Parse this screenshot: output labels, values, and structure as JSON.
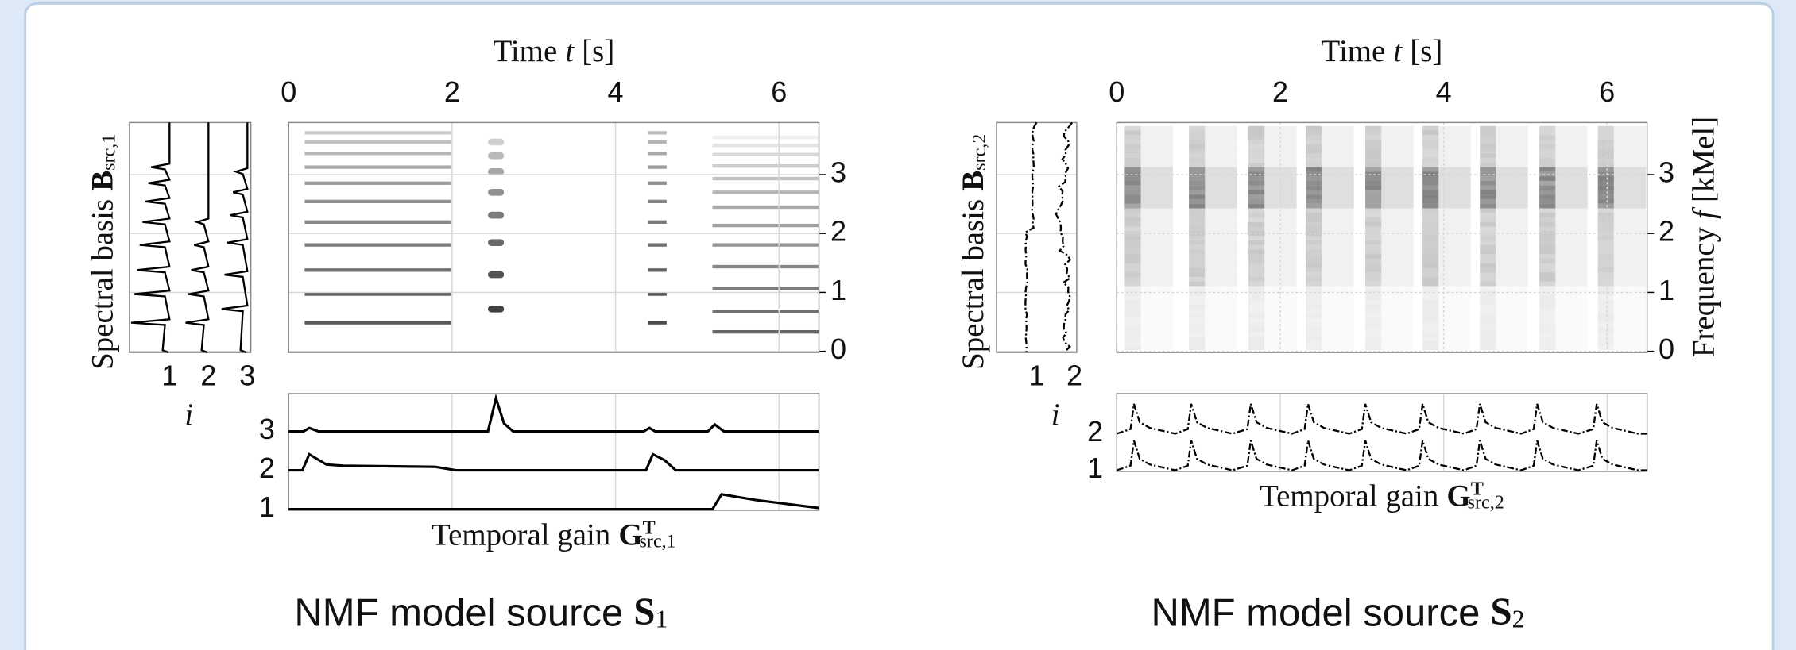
{
  "panels": [
    {
      "x_label": "Time",
      "x_symbol": "t",
      "x_unit": "[s]",
      "x_ticks": [
        "0",
        "2",
        "4",
        "6"
      ],
      "y_ticks": [
        "0",
        "1",
        "2",
        "3"
      ],
      "basis_label": "Spectral basis",
      "basis_symbol": "B",
      "basis_subscript": "src,1",
      "basis_ticks": [
        "1",
        "2",
        "3"
      ],
      "basis_axis_label": "i",
      "gain_ticks": [
        "1",
        "2",
        "3"
      ],
      "gain_label": "Temporal gain",
      "gain_symbol": "G",
      "gain_superscript": "T",
      "gain_subscript": "src,1",
      "caption": "NMF model source",
      "caption_symbol": "S",
      "caption_subscript": "1"
    },
    {
      "x_label": "Time",
      "x_symbol": "t",
      "x_unit": "[s]",
      "x_ticks": [
        "0",
        "2",
        "4",
        "6"
      ],
      "y_ticks": [
        "0",
        "1",
        "2",
        "3"
      ],
      "y_label": "Frequency",
      "y_symbol": "f",
      "y_unit": "[kMel]",
      "basis_label": "Spectral basis",
      "basis_symbol": "B",
      "basis_subscript": "src,2",
      "basis_ticks": [
        "1",
        "2"
      ],
      "basis_axis_label": "i",
      "gain_ticks": [
        "1",
        "2"
      ],
      "gain_label": "Temporal gain",
      "gain_symbol": "G",
      "gain_superscript": "T",
      "gain_subscript": "src,2",
      "caption": "NMF model source",
      "caption_symbol": "S",
      "caption_subscript": "2"
    }
  ]
}
